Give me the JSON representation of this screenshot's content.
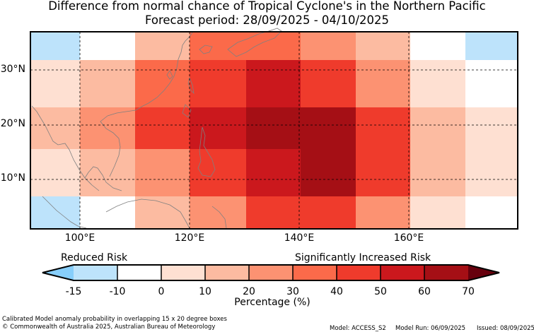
{
  "title_line1": "Difference from normal chance of Tropical Cyclone's in the Northern Pacific",
  "title_line2": "Forecast period: 28/09/2025 - 04/10/2025",
  "map": {
    "lon_labels": [
      "100°E",
      "120°E",
      "140°E",
      "160°E"
    ],
    "lat_labels": [
      "30°N",
      "20°N",
      "10°N"
    ],
    "columns_lon_start": [
      90,
      100,
      110,
      120,
      130,
      140,
      150,
      160,
      170
    ],
    "rows": [
      {
        "band": "upper edge",
        "values": [
          -15,
          -10,
          10,
          30,
          30,
          20,
          10,
          -10,
          -15
        ]
      },
      {
        "band": "30°N",
        "values": [
          0,
          10,
          30,
          40,
          50,
          40,
          20,
          0,
          -10
        ]
      },
      {
        "band": "20°N",
        "values": [
          10,
          20,
          40,
          50,
          60,
          60,
          40,
          10,
          0
        ]
      },
      {
        "band": "10°N",
        "values": [
          0,
          10,
          20,
          40,
          50,
          60,
          40,
          10,
          0
        ]
      },
      {
        "band": "lower edge",
        "values": [
          -15,
          -10,
          10,
          20,
          40,
          40,
          20,
          0,
          -10
        ]
      }
    ]
  },
  "legend": {
    "reduced_label": "Reduced Risk",
    "increased_label": "Significantly Increased Risk",
    "ticks": [
      "-15",
      "-10",
      "0",
      "10",
      "20",
      "30",
      "40",
      "50",
      "60",
      "70"
    ],
    "bins": [
      {
        "from": -15,
        "to": -10,
        "color": "#bde3fb"
      },
      {
        "from": -10,
        "to": 0,
        "color": "#ffffff"
      },
      {
        "from": 0,
        "to": 10,
        "color": "#fee0d2"
      },
      {
        "from": 10,
        "to": 20,
        "color": "#fcbba1"
      },
      {
        "from": 20,
        "to": 30,
        "color": "#fc9272"
      },
      {
        "from": 30,
        "to": 40,
        "color": "#fb6a4a"
      },
      {
        "from": 40,
        "to": 50,
        "color": "#ef3b2c"
      },
      {
        "from": 50,
        "to": 60,
        "color": "#cb181d"
      },
      {
        "from": 60,
        "to": 70,
        "color": "#a50f15"
      }
    ],
    "under_color": "#87cefa",
    "over_color": "#67000d",
    "axis_label": "Percentage (%)"
  },
  "footer": {
    "caption": "Calibrated Model anomaly probability in overlapping 15 x 20 degree boxes",
    "copyright": "© Commonwealth of Australia 2025, Australian Bureau of Meteorology",
    "model": "Model: ACCESS_S2",
    "model_run": "Model Run: 06/09/2025",
    "issued": "Issued: 08/09/2025"
  }
}
